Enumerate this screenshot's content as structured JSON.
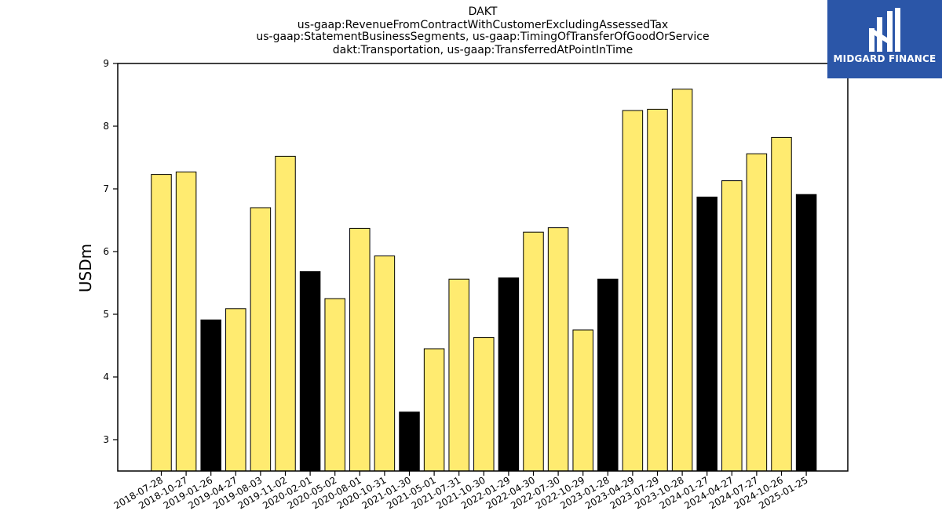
{
  "logo": {
    "text": "MIDGARD FINANCE",
    "background": "#2b56a8"
  },
  "chart_data": {
    "type": "bar",
    "title_lines": [
      "DAKT",
      "us-gaap:RevenueFromContractWithCustomerExcludingAssessedTax",
      "us-gaap:StatementBusinessSegments, us-gaap:TimingOfTransferOfGoodOrService",
      "dakt:Transportation, us-gaap:TransferredAtPointInTime"
    ],
    "ylabel": "USDm",
    "xlabel": "",
    "ylim": [
      2.5,
      9
    ],
    "yticks": [
      3,
      4,
      5,
      6,
      7,
      8,
      9
    ],
    "grid": false,
    "colors": {
      "highlight": "#000000",
      "normal": "#ffeb70",
      "edge": "#000000"
    },
    "categories": [
      "2018-07-28",
      "2018-10-27",
      "2019-01-26",
      "2019-04-27",
      "2019-08-03",
      "2019-11-02",
      "2020-02-01",
      "2020-05-02",
      "2020-08-01",
      "2020-10-31",
      "2021-01-30",
      "2021-05-01",
      "2021-07-31",
      "2021-10-30",
      "2022-01-29",
      "2022-04-30",
      "2022-07-30",
      "2022-10-29",
      "2023-01-28",
      "2023-04-29",
      "2023-07-29",
      "2023-10-28",
      "2024-01-27",
      "2024-04-27",
      "2024-07-27",
      "2024-10-26",
      "2025-01-25"
    ],
    "values": [
      7.23,
      7.27,
      4.91,
      5.09,
      6.7,
      7.52,
      5.68,
      5.25,
      6.37,
      5.93,
      3.44,
      4.45,
      5.56,
      4.63,
      5.58,
      6.31,
      6.38,
      4.75,
      5.56,
      8.25,
      8.27,
      8.59,
      6.87,
      7.13,
      7.56,
      7.82,
      6.91
    ],
    "highlighted": [
      false,
      false,
      true,
      false,
      false,
      false,
      true,
      false,
      false,
      false,
      true,
      false,
      false,
      false,
      true,
      false,
      false,
      false,
      true,
      false,
      false,
      false,
      true,
      false,
      false,
      false,
      true
    ]
  }
}
